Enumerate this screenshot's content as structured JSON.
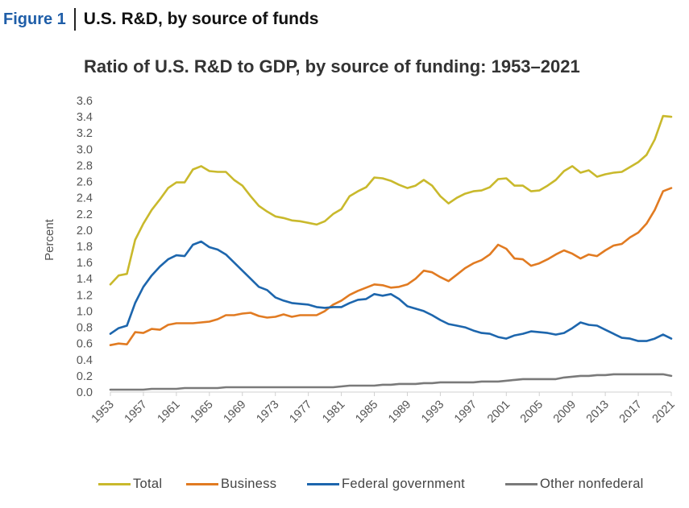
{
  "figure_header": {
    "label": "Figure 1",
    "title": "U.S. R&D, by source of funds"
  },
  "chart_data": {
    "type": "line",
    "title": "Ratio of U.S. R&D to GDP, by source of funding: 1953–2021",
    "xlabel": "",
    "ylabel": "Percent",
    "ylim": [
      0,
      3.6
    ],
    "xlim": [
      1953,
      2021
    ],
    "yticks": [
      "0.0",
      "0.2",
      "0.4",
      "0.6",
      "0.8",
      "1.0",
      "1.2",
      "1.4",
      "1.6",
      "1.8",
      "2.0",
      "2.2",
      "2.4",
      "2.6",
      "2.8",
      "3.0",
      "3.2",
      "3.4",
      "3.6"
    ],
    "xticks": [
      "1953",
      "1957",
      "1961",
      "1965",
      "1969",
      "1973",
      "1977",
      "1981",
      "1985",
      "1989",
      "1993",
      "1997",
      "2001",
      "2005",
      "2009",
      "2013",
      "2017",
      "2021"
    ],
    "grid": false,
    "legend_position": "bottom",
    "x": [
      1953,
      1954,
      1955,
      1956,
      1957,
      1958,
      1959,
      1960,
      1961,
      1962,
      1963,
      1964,
      1965,
      1966,
      1967,
      1968,
      1969,
      1970,
      1971,
      1972,
      1973,
      1974,
      1975,
      1976,
      1977,
      1978,
      1979,
      1980,
      1981,
      1982,
      1983,
      1984,
      1985,
      1986,
      1987,
      1988,
      1989,
      1990,
      1991,
      1992,
      1993,
      1994,
      1995,
      1996,
      1997,
      1998,
      1999,
      2000,
      2001,
      2002,
      2003,
      2004,
      2005,
      2006,
      2007,
      2008,
      2009,
      2010,
      2011,
      2012,
      2013,
      2014,
      2015,
      2016,
      2017,
      2018,
      2019,
      2020,
      2021
    ],
    "series": [
      {
        "name": "Total",
        "color": "#c9b92c",
        "values": [
          1.33,
          1.44,
          1.46,
          1.88,
          2.08,
          2.25,
          2.38,
          2.52,
          2.59,
          2.59,
          2.75,
          2.79,
          2.73,
          2.72,
          2.72,
          2.62,
          2.55,
          2.42,
          2.3,
          2.23,
          2.17,
          2.15,
          2.12,
          2.11,
          2.09,
          2.07,
          2.11,
          2.2,
          2.26,
          2.42,
          2.48,
          2.53,
          2.65,
          2.64,
          2.61,
          2.56,
          2.52,
          2.55,
          2.62,
          2.55,
          2.42,
          2.33,
          2.4,
          2.45,
          2.48,
          2.49,
          2.53,
          2.63,
          2.64,
          2.55,
          2.55,
          2.48,
          2.49,
          2.55,
          2.62,
          2.73,
          2.79,
          2.71,
          2.74,
          2.66,
          2.69,
          2.71,
          2.72,
          2.78,
          2.84,
          2.93,
          3.12,
          3.41,
          3.4
        ]
      },
      {
        "name": "Business",
        "color": "#e17b22",
        "values": [
          0.58,
          0.6,
          0.59,
          0.74,
          0.73,
          0.78,
          0.77,
          0.83,
          0.85,
          0.85,
          0.85,
          0.86,
          0.87,
          0.9,
          0.95,
          0.95,
          0.97,
          0.98,
          0.94,
          0.92,
          0.93,
          0.96,
          0.93,
          0.95,
          0.95,
          0.95,
          1.0,
          1.08,
          1.13,
          1.2,
          1.25,
          1.29,
          1.33,
          1.32,
          1.29,
          1.3,
          1.33,
          1.4,
          1.5,
          1.48,
          1.42,
          1.37,
          1.45,
          1.53,
          1.59,
          1.63,
          1.7,
          1.82,
          1.77,
          1.65,
          1.64,
          1.56,
          1.59,
          1.64,
          1.7,
          1.75,
          1.71,
          1.65,
          1.7,
          1.68,
          1.75,
          1.81,
          1.83,
          1.91,
          1.97,
          2.08,
          2.25,
          2.48,
          2.52
        ]
      },
      {
        "name": "Federal government",
        "color": "#1d66ad",
        "values": [
          0.72,
          0.79,
          0.82,
          1.1,
          1.3,
          1.44,
          1.55,
          1.64,
          1.69,
          1.68,
          1.82,
          1.86,
          1.79,
          1.76,
          1.7,
          1.6,
          1.5,
          1.4,
          1.3,
          1.26,
          1.17,
          1.13,
          1.1,
          1.09,
          1.08,
          1.05,
          1.04,
          1.05,
          1.05,
          1.1,
          1.14,
          1.15,
          1.21,
          1.19,
          1.21,
          1.15,
          1.06,
          1.03,
          1.0,
          0.95,
          0.89,
          0.84,
          0.82,
          0.8,
          0.76,
          0.73,
          0.72,
          0.68,
          0.66,
          0.7,
          0.72,
          0.75,
          0.74,
          0.73,
          0.71,
          0.73,
          0.79,
          0.86,
          0.83,
          0.82,
          0.77,
          0.72,
          0.67,
          0.66,
          0.63,
          0.63,
          0.66,
          0.71,
          0.66
        ]
      },
      {
        "name": "Other nonfederal",
        "color": "#7a7a7a",
        "values": [
          0.03,
          0.03,
          0.03,
          0.03,
          0.03,
          0.04,
          0.04,
          0.04,
          0.04,
          0.05,
          0.05,
          0.05,
          0.05,
          0.05,
          0.06,
          0.06,
          0.06,
          0.06,
          0.06,
          0.06,
          0.06,
          0.06,
          0.06,
          0.06,
          0.06,
          0.06,
          0.06,
          0.06,
          0.07,
          0.08,
          0.08,
          0.08,
          0.08,
          0.09,
          0.09,
          0.1,
          0.1,
          0.1,
          0.11,
          0.11,
          0.12,
          0.12,
          0.12,
          0.12,
          0.12,
          0.13,
          0.13,
          0.13,
          0.14,
          0.15,
          0.16,
          0.16,
          0.16,
          0.16,
          0.16,
          0.18,
          0.19,
          0.2,
          0.2,
          0.21,
          0.21,
          0.22,
          0.22,
          0.22,
          0.22,
          0.22,
          0.22,
          0.22,
          0.2
        ]
      }
    ]
  },
  "legend": [
    {
      "label": "Total",
      "color": "#c9b92c"
    },
    {
      "label": "Business",
      "color": "#e17b22"
    },
    {
      "label": "Federal government",
      "color": "#1d66ad"
    },
    {
      "label": "Other nonfederal",
      "color": "#7a7a7a"
    }
  ]
}
